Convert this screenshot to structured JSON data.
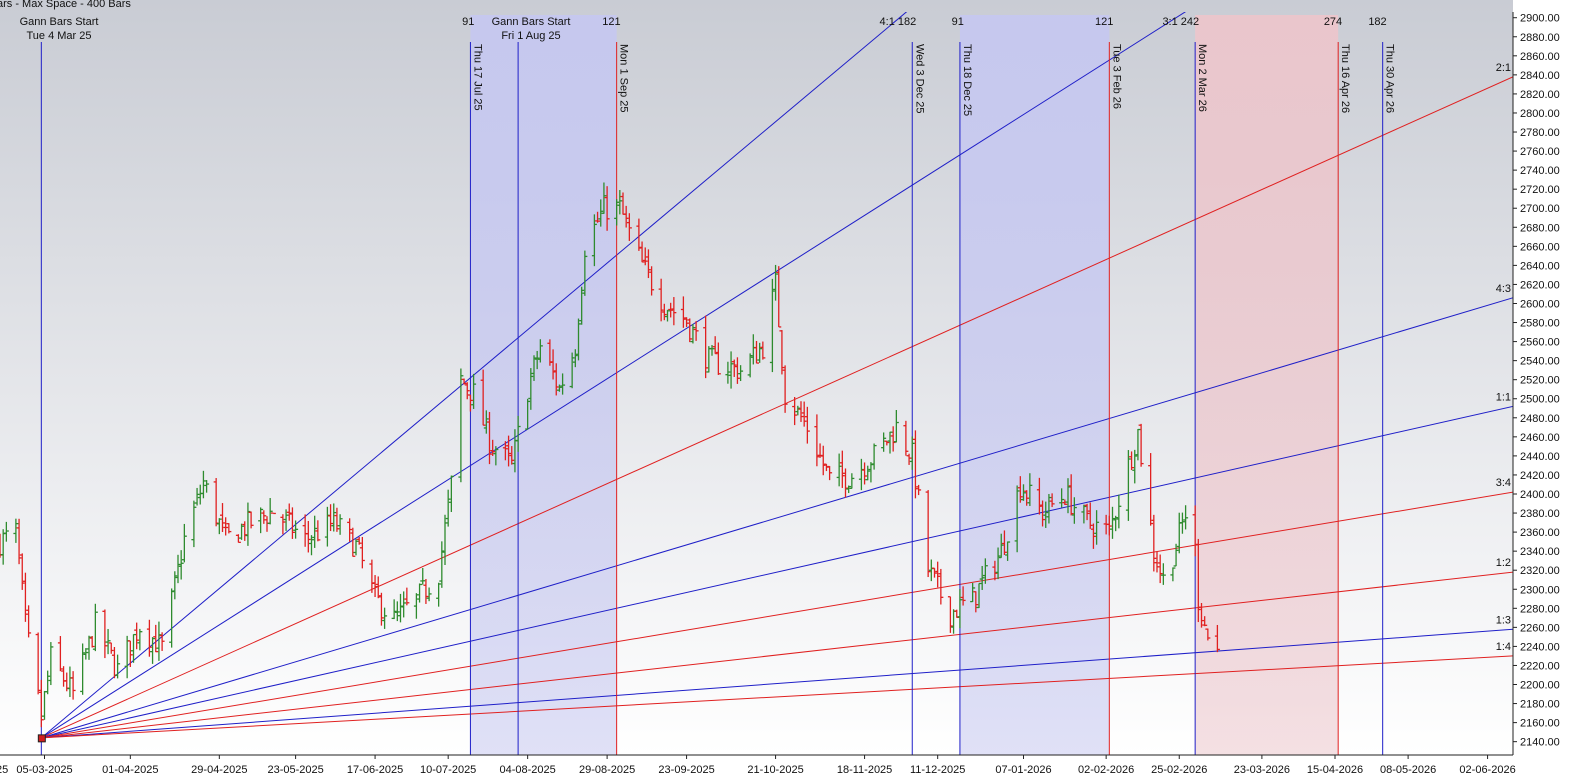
{
  "header": {
    "status": "ars -  Max Space - 400 Bars",
    "left_title": "Gann Bars Start",
    "left_date": "Tue 4 Mar 25",
    "mid_title": "Gann Bars Start",
    "mid_date": "Fri 1 Aug 25"
  },
  "colors": {
    "up_bar": "#2e8b2e",
    "down_bar": "#e02020",
    "blue_line": "#1f1fc8",
    "red_line": "#e02020",
    "blue_zone": "#c6c8f0",
    "red_zone": "#ecc6cc",
    "bg_top": "#c9ccd4",
    "bg_bottom": "#ffffff"
  },
  "chart_data": {
    "type": "bar",
    "subtype": "ohlc",
    "x_start_label": "25",
    "x_tick_labels": [
      "05-03-2025",
      "01-04-2025",
      "29-04-2025",
      "23-05-2025",
      "17-06-2025",
      "10-07-2025",
      "04-08-2025",
      "29-08-2025",
      "23-09-2025",
      "21-10-2025",
      "18-11-2025",
      "11-12-2025",
      "07-01-2026",
      "02-02-2026",
      "25-02-2026",
      "23-03-2026",
      "15-04-2026",
      "08-05-2026",
      "02-06-2026"
    ],
    "y_ticks": [
      2140,
      2160,
      2180,
      2200,
      2220,
      2240,
      2260,
      2280,
      2300,
      2320,
      2340,
      2360,
      2380,
      2400,
      2420,
      2440,
      2460,
      2480,
      2500,
      2520,
      2540,
      2560,
      2580,
      2600,
      2620,
      2640,
      2660,
      2680,
      2700,
      2720,
      2740,
      2760,
      2780,
      2800,
      2820,
      2840,
      2860,
      2880,
      2900
    ],
    "y_tick_labels": [
      "2140.00",
      "2160.00",
      "2180.00",
      "2200.00",
      "2220.00",
      "2240.00",
      "2260.00",
      "2280.00",
      "2300.00",
      "2320.00",
      "2340.00",
      "2360.00",
      "2380.00",
      "2400.00",
      "2420.00",
      "2440.00",
      "2460.00",
      "2480.00",
      "2500.00",
      "2520.00",
      "2540.00",
      "2560.00",
      "2580.00",
      "2600.00",
      "2620.00",
      "2640.00",
      "2660.00",
      "2680.00",
      "2700.00",
      "2720.00",
      "2740.00",
      "2760.00",
      "2780.00",
      "2800.00",
      "2820.00",
      "2840.00",
      "2860.00",
      "2880.00",
      "2900.00"
    ],
    "ylim": [
      2126,
      2906
    ],
    "x_tick_dates": [
      "2025-03-05",
      "2025-04-01",
      "2025-04-29",
      "2025-05-23",
      "2025-06-17",
      "2025-07-10",
      "2025-08-04",
      "2025-08-29",
      "2025-09-23",
      "2025-10-21",
      "2025-11-18",
      "2025-12-11",
      "2026-01-07",
      "2026-02-02",
      "2026-02-25",
      "2026-03-23",
      "2026-04-15",
      "2026-05-08",
      "2026-06-02"
    ],
    "xlim": [
      "2025-02-19",
      "2026-06-10"
    ],
    "grid": false,
    "fan_origin": {
      "date": "2025-03-04",
      "price": 2144
    },
    "fan": [
      {
        "label": "4:1",
        "color": "blue",
        "date": "2025-11-29",
        "price": 2900
      },
      {
        "label": "3:1",
        "color": "blue",
        "date": "2026-02-24",
        "price": 2900
      },
      {
        "label": "2:1",
        "color": "red",
        "date": "2026-06-10",
        "price": 2838
      },
      {
        "label": "4:3",
        "color": "blue",
        "date": "2026-06-10",
        "price": 2606
      },
      {
        "label": "1:1",
        "color": "blue",
        "date": "2026-06-10",
        "price": 2492
      },
      {
        "label": "3:4",
        "color": "red",
        "date": "2026-06-10",
        "price": 2402
      },
      {
        "label": "1:2",
        "color": "red",
        "date": "2026-06-10",
        "price": 2318
      },
      {
        "label": "1:3",
        "color": "blue",
        "date": "2026-06-10",
        "price": 2258
      },
      {
        "label": "1:4",
        "color": "red",
        "date": "2026-06-10",
        "price": 2230
      }
    ],
    "zones": [
      {
        "start": "2025-07-17",
        "end": "2025-09-01",
        "color": "blue"
      },
      {
        "start": "2025-12-18",
        "end": "2026-02-03",
        "color": "blue"
      },
      {
        "start": "2026-03-02",
        "end": "2026-04-16",
        "color": "red"
      }
    ],
    "cycle_lines": [
      {
        "date": "2025-03-04",
        "label": "",
        "color": "blue"
      },
      {
        "date": "2025-07-17",
        "label": "Thu 17 Jul 25",
        "color": "blue"
      },
      {
        "date": "2025-08-01",
        "label": "",
        "color": "blue"
      },
      {
        "date": "2025-09-01",
        "label": "Mon 1 Sep 25",
        "color": "red"
      },
      {
        "date": "2025-12-03",
        "label": "Wed 3 Dec 25",
        "color": "blue"
      },
      {
        "date": "2025-12-18",
        "label": "Thu 18 Dec 25",
        "color": "blue"
      },
      {
        "date": "2026-02-03",
        "label": "Tue 3 Feb 26",
        "color": "red"
      },
      {
        "date": "2026-03-02",
        "label": "Mon 2 Mar 26",
        "color": "blue"
      },
      {
        "date": "2026-04-16",
        "label": "Thu 16 Apr 26",
        "color": "red"
      },
      {
        "date": "2026-04-30",
        "label": "Thu 30 Apr 26",
        "color": "blue"
      }
    ],
    "cycle_counts": [
      {
        "date": "2025-07-17",
        "text": "91"
      },
      {
        "date": "2025-09-01",
        "text": "121"
      },
      {
        "date": "2025-12-03",
        "text": "4:1 182"
      },
      {
        "date": "2025-12-18",
        "text": "91"
      },
      {
        "date": "2026-02-03",
        "text": "121"
      },
      {
        "date": "2026-03-02",
        "text": "3:1  242"
      },
      {
        "date": "2026-04-16",
        "text": "274"
      },
      {
        "date": "2026-04-30",
        "text": "182"
      }
    ],
    "price_path": [
      {
        "date": "2025-02-19",
        "price": 2350
      },
      {
        "date": "2025-02-24",
        "price": 2360
      },
      {
        "date": "2025-02-27",
        "price": 2262
      },
      {
        "date": "2025-03-04",
        "price": 2165
      },
      {
        "date": "2025-03-07",
        "price": 2228
      },
      {
        "date": "2025-03-14",
        "price": 2190
      },
      {
        "date": "2025-03-21",
        "price": 2262
      },
      {
        "date": "2025-03-28",
        "price": 2215
      },
      {
        "date": "2025-04-04",
        "price": 2262
      },
      {
        "date": "2025-04-11",
        "price": 2238
      },
      {
        "date": "2025-04-18",
        "price": 2352
      },
      {
        "date": "2025-04-24",
        "price": 2412
      },
      {
        "date": "2025-05-01",
        "price": 2352
      },
      {
        "date": "2025-05-09",
        "price": 2370
      },
      {
        "date": "2025-05-16",
        "price": 2382
      },
      {
        "date": "2025-05-26",
        "price": 2352
      },
      {
        "date": "2025-06-04",
        "price": 2370
      },
      {
        "date": "2025-06-11",
        "price": 2345
      },
      {
        "date": "2025-06-17",
        "price": 2290
      },
      {
        "date": "2025-06-23",
        "price": 2268
      },
      {
        "date": "2025-06-30",
        "price": 2288
      },
      {
        "date": "2025-07-07",
        "price": 2318
      },
      {
        "date": "2025-07-11",
        "price": 2410
      },
      {
        "date": "2025-07-14",
        "price": 2520
      },
      {
        "date": "2025-07-18",
        "price": 2505
      },
      {
        "date": "2025-07-23",
        "price": 2455
      },
      {
        "date": "2025-07-30",
        "price": 2430
      },
      {
        "date": "2025-08-04",
        "price": 2510
      },
      {
        "date": "2025-08-08",
        "price": 2555
      },
      {
        "date": "2025-08-14",
        "price": 2510
      },
      {
        "date": "2025-08-19",
        "price": 2555
      },
      {
        "date": "2025-08-22",
        "price": 2660
      },
      {
        "date": "2025-08-28",
        "price": 2700
      },
      {
        "date": "2025-09-02",
        "price": 2700
      },
      {
        "date": "2025-09-09",
        "price": 2640
      },
      {
        "date": "2025-09-16",
        "price": 2600
      },
      {
        "date": "2025-09-23",
        "price": 2582
      },
      {
        "date": "2025-09-30",
        "price": 2540
      },
      {
        "date": "2025-10-10",
        "price": 2530
      },
      {
        "date": "2025-10-17",
        "price": 2555
      },
      {
        "date": "2025-10-21",
        "price": 2620
      },
      {
        "date": "2025-10-24",
        "price": 2505
      },
      {
        "date": "2025-10-31",
        "price": 2470
      },
      {
        "date": "2025-11-07",
        "price": 2415
      },
      {
        "date": "2025-11-14",
        "price": 2420
      },
      {
        "date": "2025-11-21",
        "price": 2440
      },
      {
        "date": "2025-11-28",
        "price": 2470
      },
      {
        "date": "2025-12-03",
        "price": 2440
      },
      {
        "date": "2025-12-08",
        "price": 2320
      },
      {
        "date": "2025-12-15",
        "price": 2275
      },
      {
        "date": "2025-12-22",
        "price": 2290
      },
      {
        "date": "2025-12-31",
        "price": 2340
      },
      {
        "date": "2026-01-06",
        "price": 2410
      },
      {
        "date": "2026-01-13",
        "price": 2380
      },
      {
        "date": "2026-01-20",
        "price": 2400
      },
      {
        "date": "2026-01-27",
        "price": 2370
      },
      {
        "date": "2026-02-03",
        "price": 2360
      },
      {
        "date": "2026-02-09",
        "price": 2430
      },
      {
        "date": "2026-02-12",
        "price": 2465
      },
      {
        "date": "2026-02-17",
        "price": 2340
      },
      {
        "date": "2026-02-20",
        "price": 2310
      },
      {
        "date": "2026-02-24",
        "price": 2345
      },
      {
        "date": "2026-02-27",
        "price": 2380
      },
      {
        "date": "2026-03-02",
        "price": 2340
      },
      {
        "date": "2026-03-03",
        "price": 2290
      },
      {
        "date": "2026-03-06",
        "price": 2250
      },
      {
        "date": "2026-03-09",
        "price": 2235
      }
    ]
  }
}
